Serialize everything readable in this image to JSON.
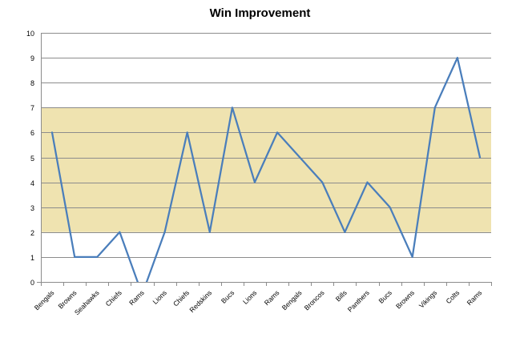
{
  "chart_data": {
    "type": "line",
    "title": "Win Improvement",
    "xlabel": "",
    "ylabel": "",
    "categories": [
      "Bengals",
      "Browns",
      "Seahawks",
      "Chiefs",
      "Rams",
      "Lions",
      "Chiefs",
      "Redskins",
      "Bucs",
      "Lions",
      "Rams",
      "Bengals",
      "Broncos",
      "Bills",
      "Panthers",
      "Bucs",
      "Browns",
      "Vikings",
      "Colts",
      "Rams"
    ],
    "series": [
      {
        "values": [
          6,
          1,
          1,
          2,
          -0.5,
          2,
          6,
          2,
          7,
          4,
          6,
          5,
          4,
          2,
          4,
          3,
          1,
          7,
          9,
          5
        ]
      }
    ],
    "ylim": [
      0,
      10
    ],
    "yticks": [
      0,
      1,
      2,
      3,
      4,
      5,
      6,
      7,
      8,
      9,
      10
    ],
    "band": {
      "from": 2,
      "to": 7
    },
    "grid": true,
    "legend": "none"
  },
  "colors": {
    "line": "#4a7ebb",
    "band": "#efe3b0",
    "grid": "#8c8c8c",
    "axis": "#8c8c8c"
  }
}
